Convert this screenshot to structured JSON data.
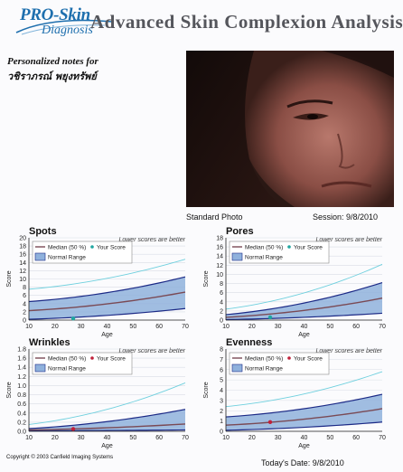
{
  "header": {
    "logo_line1": "PRO-Skin",
    "logo_line2": "Diagnosis",
    "title": "Advanced Skin Complexion Analysis"
  },
  "notes": {
    "label": "Personalized notes for",
    "name": "วชิราภรณ์ พยุงทรัพย์"
  },
  "photo": {
    "caption": "Standard Photo",
    "session": "Session: 9/8/2010"
  },
  "footer": {
    "copyright": "Copyright © 2003 Canfield Imaging Systems",
    "todays_date": "Today's Date: 9/8/2010"
  },
  "colors": {
    "median": "#7a4a55",
    "range_fill": "#8fb1dc",
    "range_edge": "#1c2a86",
    "upper_line": "#6fd0de",
    "score_teal": "#1fa6a0",
    "score_red": "#c0203a"
  },
  "chart_data": [
    {
      "type": "line",
      "title": "Spots",
      "note": "Lower scores are better",
      "xlabel": "Age",
      "ylabel": "Score",
      "xlim": [
        10,
        70
      ],
      "ylim": [
        0,
        20
      ],
      "xticks": [
        "10",
        "20",
        "30",
        "40",
        "50",
        "60",
        "70"
      ],
      "yticks": [
        "0",
        "2",
        "4",
        "6",
        "8",
        "10",
        "12",
        "14",
        "16",
        "18",
        "20"
      ],
      "legend": {
        "median": "Median (50 %)",
        "score": "Your Score",
        "range": "Normal Range"
      },
      "score_color": "teal",
      "score": {
        "x": 27,
        "y": 0.4
      },
      "median": {
        "x": [
          10,
          70
        ],
        "y": [
          2.3,
          6.8
        ]
      },
      "range_low": {
        "x": [
          10,
          70
        ],
        "y": [
          0.2,
          2.8
        ]
      },
      "range_high": {
        "x": [
          10,
          70
        ],
        "y": [
          4.5,
          10.5
        ]
      },
      "upper": {
        "x": [
          10,
          70
        ],
        "y": [
          7.5,
          14.8
        ]
      }
    },
    {
      "type": "line",
      "title": "Pores",
      "note": "Lower scores are better",
      "xlabel": "Age",
      "ylabel": "Score",
      "xlim": [
        10,
        70
      ],
      "ylim": [
        0,
        18
      ],
      "xticks": [
        "10",
        "20",
        "30",
        "40",
        "50",
        "60",
        "70"
      ],
      "yticks": [
        "0",
        "2",
        "4",
        "6",
        "8",
        "10",
        "12",
        "14",
        "16",
        "18"
      ],
      "legend": {
        "median": "Median (50 %)",
        "score": "Your Score",
        "range": "Normal Range"
      },
      "score_color": "teal",
      "score": {
        "x": 27,
        "y": 0.6
      },
      "median": {
        "x": [
          10,
          70
        ],
        "y": [
          0.6,
          4.8
        ]
      },
      "range_low": {
        "x": [
          10,
          70
        ],
        "y": [
          0.1,
          1.5
        ]
      },
      "range_high": {
        "x": [
          10,
          70
        ],
        "y": [
          1.2,
          8.2
        ]
      },
      "upper": {
        "x": [
          10,
          70
        ],
        "y": [
          2.4,
          12.2
        ]
      }
    },
    {
      "type": "line",
      "title": "Wrinkles",
      "note": "Lower scores are better",
      "xlabel": "Age",
      "ylabel": "Score",
      "xlim": [
        10,
        70
      ],
      "ylim": [
        0,
        1.8
      ],
      "xticks": [
        "10",
        "20",
        "30",
        "40",
        "50",
        "60",
        "70"
      ],
      "yticks": [
        "0.0",
        "0.2",
        "0.4",
        "0.6",
        "0.8",
        "1.0",
        "1.2",
        "1.4",
        "1.6",
        "1.8"
      ],
      "legend": {
        "median": "Median (50 %)",
        "score": "Your Score",
        "range": "Normal Range"
      },
      "score_color": "red",
      "score": {
        "x": 27,
        "y": 0.05
      },
      "median": {
        "x": [
          10,
          70
        ],
        "y": [
          0.03,
          0.16
        ]
      },
      "range_low": {
        "x": [
          10,
          70
        ],
        "y": [
          0.01,
          0.03
        ]
      },
      "range_high": {
        "x": [
          10,
          70
        ],
        "y": [
          0.06,
          0.48
        ]
      },
      "upper": {
        "x": [
          10,
          70
        ],
        "y": [
          0.15,
          1.06
        ]
      }
    },
    {
      "type": "line",
      "title": "Evenness",
      "note": "Lower scores are better",
      "xlabel": "Age",
      "ylabel": "Score",
      "xlim": [
        10,
        70
      ],
      "ylim": [
        0,
        8
      ],
      "xticks": [
        "10",
        "20",
        "30",
        "40",
        "50",
        "60",
        "70"
      ],
      "yticks": [
        "0",
        "1",
        "2",
        "3",
        "4",
        "5",
        "6",
        "7",
        "8"
      ],
      "legend": {
        "median": "Median (50 %)",
        "score": "Your Score",
        "range": "Normal Range"
      },
      "score_color": "red",
      "score": {
        "x": 27,
        "y": 0.9
      },
      "median": {
        "x": [
          10,
          70
        ],
        "y": [
          0.6,
          2.2
        ]
      },
      "range_low": {
        "x": [
          10,
          70
        ],
        "y": [
          0.1,
          0.9
        ]
      },
      "range_high": {
        "x": [
          10,
          70
        ],
        "y": [
          1.4,
          3.6
        ]
      },
      "upper": {
        "x": [
          10,
          70
        ],
        "y": [
          2.4,
          5.8
        ]
      }
    }
  ]
}
